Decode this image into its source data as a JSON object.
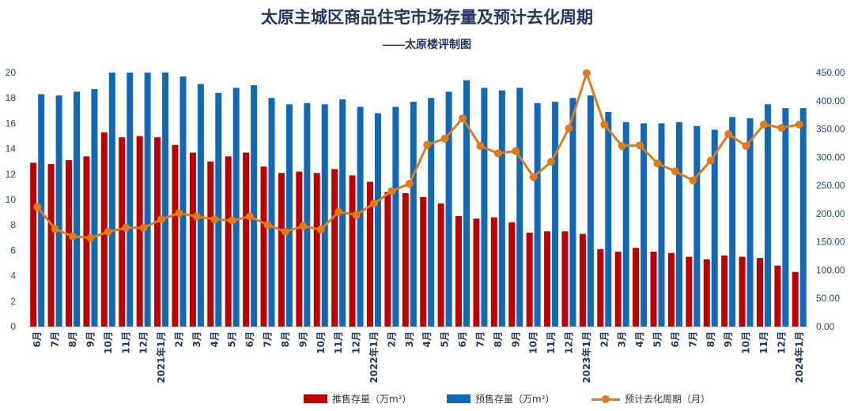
{
  "chart_data": {
    "type": "bar",
    "title": "太原主城区商品住宅市场存量及预计去化周期",
    "subtitle": "——太原楼评制图",
    "categories": [
      "6月",
      "7月",
      "8月",
      "9月",
      "10月",
      "11月",
      "12月",
      "2021年1月",
      "2月",
      "3月",
      "4月",
      "5月",
      "6月",
      "7月",
      "8月",
      "9月",
      "10月",
      "11月",
      "12月",
      "2022年1月",
      "2月",
      "3月",
      "4月",
      "5月",
      "6月",
      "7月",
      "8月",
      "9月",
      "10月",
      "11月",
      "12月",
      "2023年1月",
      "2月",
      "3月",
      "4月",
      "5月",
      "6月",
      "7月",
      "8月",
      "9月",
      "10月",
      "11月",
      "12月",
      "2024年1月"
    ],
    "series": [
      {
        "name": "推售存量（万m²）",
        "axis": "left",
        "kind": "bar",
        "color": "#c00000",
        "values": [
          12.9,
          12.8,
          13.1,
          13.4,
          15.3,
          14.9,
          15.0,
          14.9,
          14.3,
          13.7,
          13.0,
          13.4,
          13.7,
          12.6,
          12.1,
          12.2,
          12.1,
          12.4,
          11.9,
          11.4,
          10.6,
          10.5,
          10.2,
          9.7,
          8.7,
          8.5,
          8.6,
          8.2,
          7.4,
          7.5,
          7.5,
          7.3,
          6.1,
          5.9,
          6.2,
          5.9,
          5.8,
          5.5,
          5.3,
          5.6,
          5.5,
          5.4,
          4.8,
          4.3
        ]
      },
      {
        "name": "预售存量（万m²）",
        "axis": "left",
        "kind": "bar",
        "color": "#1168b8",
        "values": [
          18.3,
          18.2,
          18.5,
          18.7,
          20.0,
          20.0,
          20.0,
          20.0,
          19.7,
          19.1,
          18.4,
          18.8,
          19.0,
          18.0,
          17.5,
          17.6,
          17.5,
          17.9,
          17.3,
          16.8,
          17.3,
          17.7,
          18.0,
          18.5,
          19.4,
          18.8,
          18.6,
          18.8,
          17.6,
          17.7,
          18.0,
          18.2,
          16.9,
          16.1,
          16.0,
          16.0,
          16.1,
          15.8,
          15.5,
          16.5,
          16.4,
          17.5,
          17.2,
          17.2
        ]
      },
      {
        "name": "预计去化周期（月）",
        "axis": "right",
        "kind": "line",
        "color": "#e07b1a",
        "values": [
          212,
          173,
          160,
          157,
          168,
          175,
          175,
          190,
          201,
          195,
          190,
          188,
          195,
          180,
          168,
          178,
          172,
          203,
          198,
          218,
          240,
          253,
          322,
          333,
          369,
          320,
          307,
          311,
          265,
          292,
          351,
          449,
          358,
          320,
          321,
          289,
          275,
          259,
          294,
          341,
          320,
          358,
          352,
          358
        ]
      }
    ],
    "left_axis": {
      "ylim": [
        0,
        20
      ],
      "ticks": [
        "0",
        "2",
        "4",
        "6",
        "8",
        "10",
        "12",
        "14",
        "16",
        "18",
        "20"
      ]
    },
    "right_axis": {
      "ylim": [
        0,
        450
      ],
      "ticks": [
        "0.00",
        "50.00",
        "100.00",
        "150.00",
        "200.00",
        "250.00",
        "300.00",
        "350.00",
        "400.00",
        "450.00"
      ]
    },
    "grid": false,
    "legend_position": "bottom"
  },
  "legend": [
    {
      "label": "推售存量（万m²）",
      "color": "#c00000"
    },
    {
      "label": "预售存量（万m²）",
      "color": "#1168b8"
    },
    {
      "label": "预计去化周期（月）",
      "color": "#e07b1a"
    }
  ]
}
